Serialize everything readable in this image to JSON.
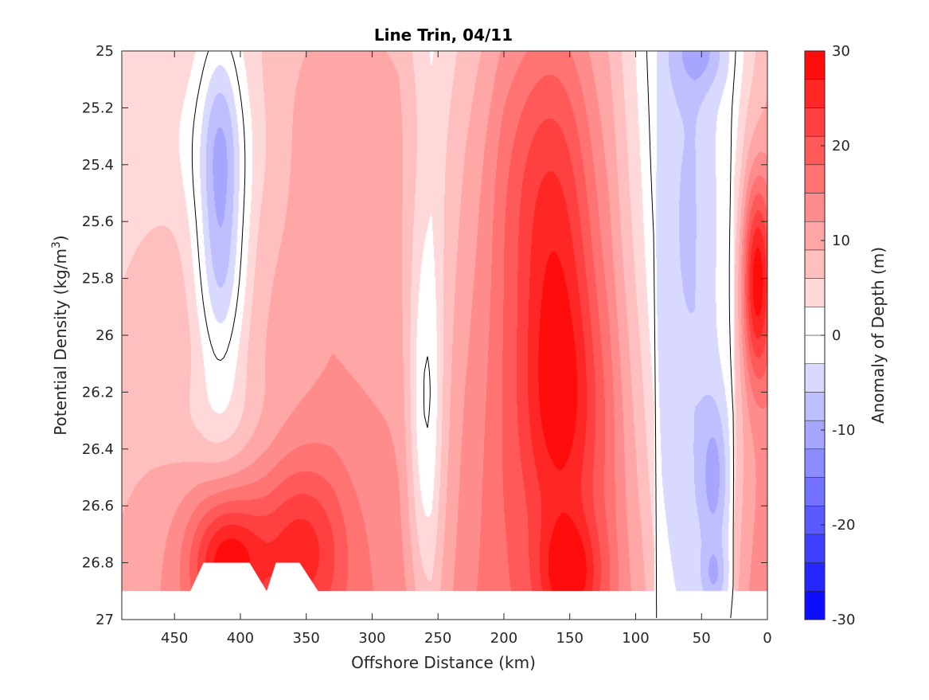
{
  "chart_data": {
    "type": "heatmap",
    "subtype": "filled-contour",
    "title": "Line Trin, 04/11",
    "xlabel": "Offshore Distance (km)",
    "ylabel_main": "Potential Density (kg/m",
    "ylabel_sup": "3",
    "ylabel_close": ")",
    "x_reversed": true,
    "y_reversed": true,
    "xlim": [
      0,
      490
    ],
    "ylim": [
      25.0,
      27.0
    ],
    "data_ylim": [
      25.0,
      26.9
    ],
    "x_ticks": [
      "450",
      "400",
      "350",
      "300",
      "250",
      "200",
      "150",
      "100",
      "50",
      "0"
    ],
    "x_tick_values": [
      450,
      400,
      350,
      300,
      250,
      200,
      150,
      100,
      50,
      0
    ],
    "y_ticks": [
      "25",
      "25.2",
      "25.4",
      "25.6",
      "25.8",
      "26",
      "26.2",
      "26.4",
      "26.6",
      "26.8",
      "27"
    ],
    "y_tick_values": [
      25.0,
      25.2,
      25.4,
      25.6,
      25.8,
      26.0,
      26.2,
      26.4,
      26.6,
      26.8,
      27.0
    ],
    "colorbar": {
      "label": "Anomaly of Depth (m)",
      "range": [
        -30,
        30
      ],
      "step": 3,
      "ticks": [
        "30",
        "20",
        "10",
        "0",
        "-10",
        "-20",
        "-30"
      ],
      "tick_values": [
        30,
        20,
        10,
        0,
        -10,
        -20,
        -30
      ],
      "low_color": "#0000ff",
      "mid_color": "#ffffff",
      "high_color": "#ff0000",
      "neutral_band": [
        -3,
        3
      ]
    },
    "grid": false,
    "anomalies": [
      {
        "x": 415,
        "y": 25.75,
        "sx": 14,
        "sy": 0.32,
        "a": -15
      },
      {
        "x": 415,
        "y": 25.2,
        "sx": 12,
        "sy": 0.25,
        "a": -8
      },
      {
        "x": 160,
        "y": 25.6,
        "sx": 22,
        "sy": 0.55,
        "a": 13
      },
      {
        "x": 155,
        "y": 26.3,
        "sx": 24,
        "sy": 0.35,
        "a": 10
      },
      {
        "x": 150,
        "y": 26.85,
        "sx": 17,
        "sy": 0.15,
        "a": 12
      },
      {
        "x": 410,
        "y": 26.8,
        "sx": 20,
        "sy": 0.16,
        "a": 16
      },
      {
        "x": 355,
        "y": 26.75,
        "sx": 24,
        "sy": 0.22,
        "a": 12
      },
      {
        "x": 320,
        "y": 25.2,
        "sx": 40,
        "sy": 0.3,
        "a": 3
      },
      {
        "x": 190,
        "y": 25.4,
        "sx": 18,
        "sy": 0.35,
        "a": 3
      },
      {
        "x": 260,
        "y": 26.3,
        "sx": 9,
        "sy": 0.45,
        "a": -8
      },
      {
        "x": 420,
        "y": 25.35,
        "sx": 30,
        "sy": 0.2,
        "a": -4
      },
      {
        "x": 40,
        "y": 26.5,
        "sx": 8,
        "sy": 0.2,
        "a": -8
      },
      {
        "x": 40,
        "y": 26.85,
        "sx": 7,
        "sy": 0.08,
        "a": -6
      },
      {
        "x": 50,
        "y": 25.0,
        "sx": 15,
        "sy": 0.1,
        "a": -6
      },
      {
        "x": 8,
        "y": 25.8,
        "sx": 8,
        "sy": 0.25,
        "a": 20
      },
      {
        "x": 70,
        "y": 25.6,
        "sx": 25,
        "sy": 1.0,
        "a": -5
      },
      {
        "x": 420,
        "y": 26.3,
        "sx": 30,
        "sy": 0.15,
        "a": -4
      },
      {
        "x": 210,
        "y": 26.0,
        "sx": 25,
        "sy": 0.8,
        "a": 2
      }
    ],
    "base_profile": [
      {
        "x": 490,
        "v": 3
      },
      {
        "x": 430,
        "v": 6
      },
      {
        "x": 380,
        "v": 6
      },
      {
        "x": 330,
        "v": 8
      },
      {
        "x": 280,
        "v": 7
      },
      {
        "x": 255,
        "v": 2
      },
      {
        "x": 230,
        "v": 6
      },
      {
        "x": 200,
        "v": 9
      },
      {
        "x": 120,
        "v": 8
      },
      {
        "x": 95,
        "v": 4
      },
      {
        "x": 80,
        "v": 0
      },
      {
        "x": 55,
        "v": -2
      },
      {
        "x": 30,
        "v": 0
      },
      {
        "x": 15,
        "v": 5
      },
      {
        "x": 0,
        "v": 8
      }
    ],
    "depth_gradient": 7,
    "no_data_regions": [
      [
        [
          490,
          26.9
        ],
        [
          438,
          26.9
        ],
        [
          428,
          26.8
        ],
        [
          393,
          26.8
        ],
        [
          380,
          26.9
        ],
        [
          373,
          26.8
        ],
        [
          355,
          26.8
        ],
        [
          341,
          26.9
        ],
        [
          0,
          26.9
        ],
        [
          0,
          27.0
        ],
        [
          490,
          27.0
        ]
      ]
    ]
  }
}
